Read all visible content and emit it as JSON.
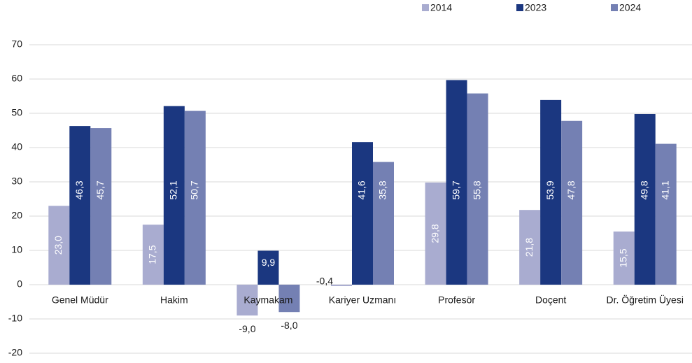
{
  "chart_data": {
    "type": "bar",
    "categories": [
      "Genel Müdür",
      "Hakim",
      "Kaymakam",
      "Kariyer Uzmanı",
      "Profesör",
      "Doçent",
      "Dr. Öğretim Üyesi"
    ],
    "series": [
      {
        "name": "2014",
        "color": "#a9acd0",
        "values": [
          23.0,
          17.5,
          -9.0,
          -0.4,
          29.8,
          21.8,
          15.5
        ],
        "value_labels": [
          "23,0",
          "17,5",
          "-9,0",
          "-0,4",
          "29,8",
          "21,8",
          "15,5"
        ]
      },
      {
        "name": "2023",
        "color": "#1b3780",
        "values": [
          46.3,
          52.1,
          9.9,
          41.6,
          59.7,
          53.9,
          49.8
        ],
        "value_labels": [
          "46,3",
          "52,1",
          "9,9",
          "41,6",
          "59,7",
          "53,9",
          "49,8"
        ]
      },
      {
        "name": "2024",
        "color": "#7480b3",
        "values": [
          45.7,
          50.7,
          -8.0,
          35.8,
          55.8,
          47.8,
          41.1
        ],
        "value_labels": [
          "45,7",
          "50,7",
          "-8,0",
          "35,8",
          "55,8",
          "47,8",
          "41,1"
        ]
      }
    ],
    "ylim": [
      -20,
      70
    ],
    "yticks": [
      -20,
      -10,
      0,
      10,
      20,
      30,
      40,
      50,
      60,
      70
    ],
    "grid": true,
    "legend": "top"
  }
}
